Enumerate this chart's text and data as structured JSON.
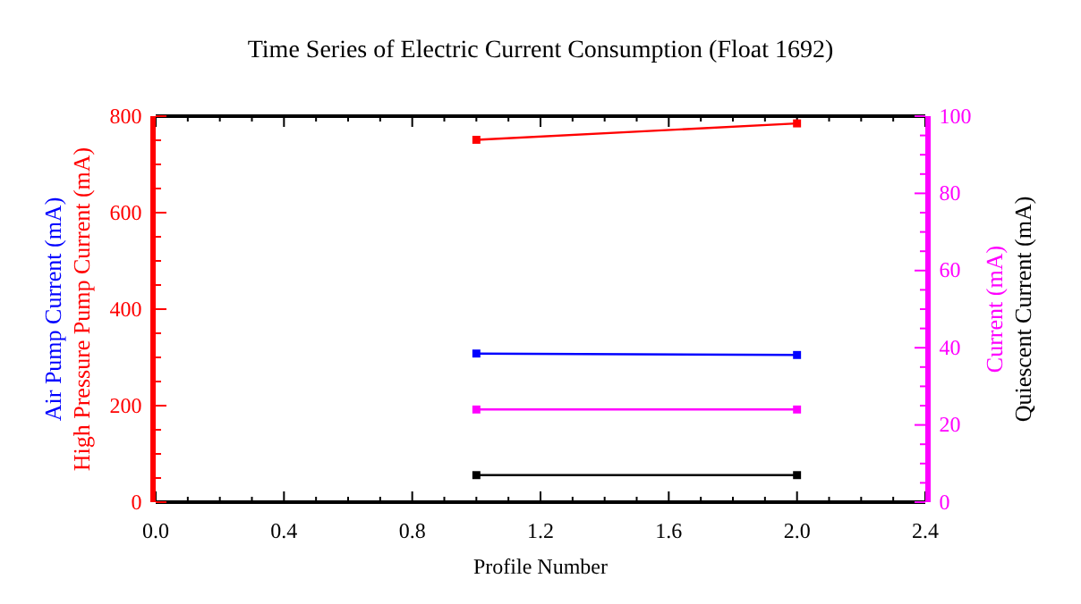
{
  "chart_data": {
    "type": "line",
    "title": "Time Series of Electric Current Consumption (Float 1692)",
    "xlabel": "Profile Number",
    "marker": "square",
    "line_style": "solid",
    "grid": false,
    "legend": "right",
    "x": [
      1,
      2
    ],
    "xlim": [
      0,
      2.4
    ],
    "xticks": [
      {
        "value": 0,
        "label": "0.0"
      },
      {
        "value": 0.4,
        "label": "0.4"
      },
      {
        "value": 0.8,
        "label": "0.8"
      },
      {
        "value": 1.2,
        "label": "1.2"
      },
      {
        "value": 1.6,
        "label": "1.6"
      },
      {
        "value": 2,
        "label": "2.0"
      },
      {
        "value": 2.4,
        "label": "2.4"
      }
    ],
    "ylim": [
      0,
      800
    ],
    "yticks": [
      0,
      200,
      400,
      600,
      800
    ],
    "y2lim": [
      0,
      100
    ],
    "y2ticks": [
      0,
      20,
      40,
      60,
      80,
      100
    ],
    "series": [
      {
        "name": "Air Pump Current (mA)",
        "color": "#0000ff",
        "values": [
          308,
          305
        ]
      },
      {
        "name": "High Pressure Pump Current (mA)",
        "color": "#ff0000",
        "values": [
          751,
          785
        ]
      },
      {
        "name": "Current (mA)",
        "color": "#ff00ff",
        "axis": "y2",
        "values": [
          24,
          24
        ]
      },
      {
        "name": "Quiescent Current (mA)",
        "color": "#000000",
        "axis": "y2",
        "values": [
          7,
          7
        ]
      }
    ]
  }
}
